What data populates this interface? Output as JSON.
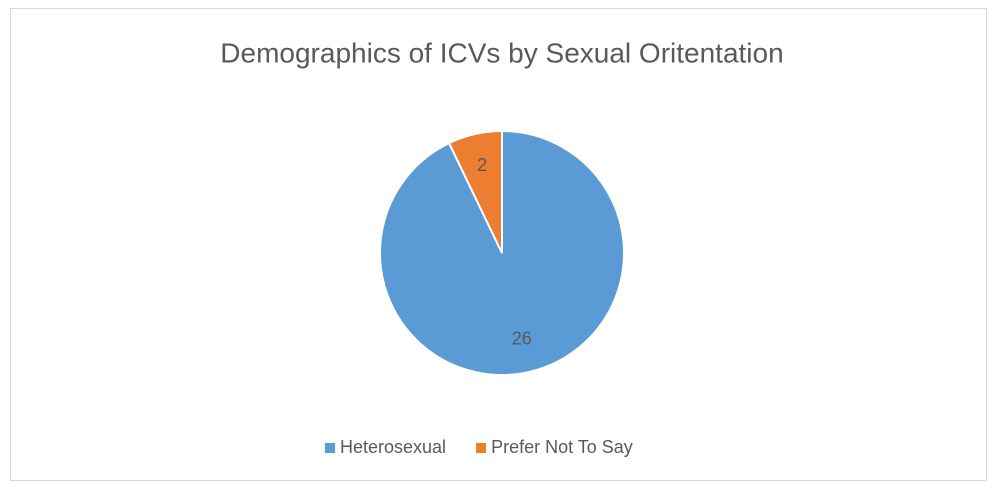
{
  "chart_data": {
    "type": "pie",
    "title": "Demographics of ICVs by Sexual Oritentation",
    "categories": [
      "Heterosexual",
      "Prefer Not To Say"
    ],
    "values": [
      26,
      2
    ],
    "colors": [
      "#5b9bd5",
      "#ed7d31"
    ],
    "legend": "bottom"
  }
}
